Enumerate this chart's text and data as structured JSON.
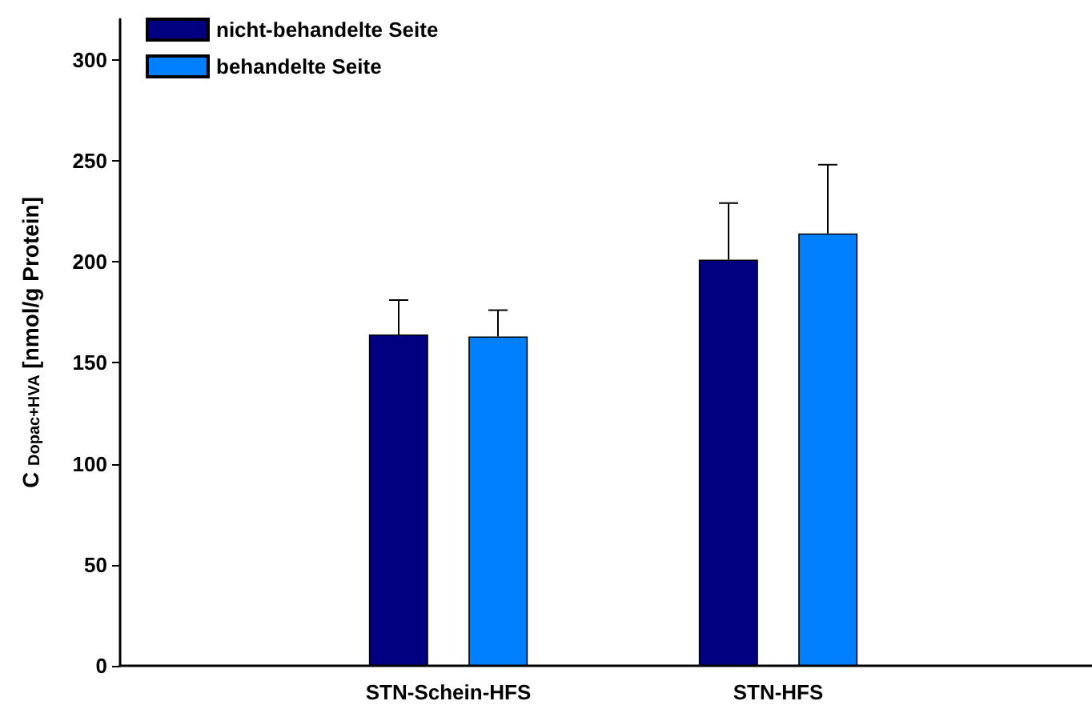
{
  "chart_data": {
    "type": "bar",
    "ylabel": "C $_{Dopac+HVA}$ [nmol/g Protein]",
    "categories": [
      "STN-Schein-HFS",
      "STN-HFS"
    ],
    "series": [
      {
        "name": "nicht-behandelte Seite",
        "color": "#000080",
        "values": [
          164,
          201
        ],
        "errors": [
          [
            164,
            181
          ],
          [
            201,
            229
          ]
        ]
      },
      {
        "name": "behandelte Seite",
        "color": "#0080ff",
        "values": [
          163,
          214
        ],
        "errors": [
          [
            163,
            176
          ],
          [
            214,
            248
          ]
        ]
      }
    ],
    "ylim": [
      0,
      320
    ],
    "yticks": [
      0,
      50,
      100,
      150,
      200,
      250,
      300
    ],
    "grid": false,
    "legend": "top left"
  }
}
